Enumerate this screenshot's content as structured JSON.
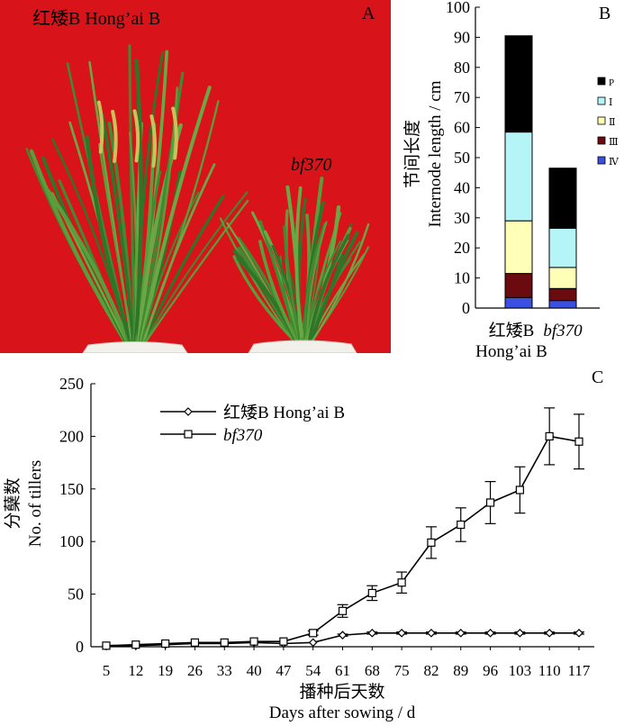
{
  "panel_a": {
    "letter": "A",
    "label_left": "红矮B Hong’ai B",
    "label_right": "bf370",
    "colors": {
      "background": "#d8141a",
      "leaf": "#3f8a32",
      "pot": "#f2f0ea"
    }
  },
  "chart_data": [
    {
      "type": "bar",
      "panel": "B",
      "stacked": true,
      "categories": [
        "红矮B\nHong’ai B",
        "bf370"
      ],
      "category_lines": [
        [
          "红矮B",
          "Hong’ai B"
        ],
        [
          "bf370"
        ]
      ],
      "category_italic": [
        false,
        true
      ],
      "ylabel_cn": "节间长度",
      "ylabel_en": "Internode length / cm",
      "ylim": [
        0,
        100
      ],
      "yticks": [
        0,
        10,
        20,
        30,
        40,
        50,
        60,
        70,
        80,
        90,
        100
      ],
      "legend_position": "right",
      "series": [
        {
          "name": "Ⅳ",
          "color": "#3b4fe0",
          "values": [
            3.5,
            2.5
          ]
        },
        {
          "name": "Ⅲ",
          "color": "#6b0a0f",
          "values": [
            8,
            4
          ]
        },
        {
          "name": "Ⅱ",
          "color": "#ffffb8",
          "values": [
            17.5,
            7
          ]
        },
        {
          "name": "Ⅰ",
          "color": "#b5f5f8",
          "values": [
            29.5,
            13
          ]
        },
        {
          "name": "P",
          "color": "#000000",
          "values": [
            32,
            20
          ]
        }
      ]
    },
    {
      "type": "line",
      "panel": "C",
      "xlabel_cn": "播种后天数",
      "xlabel_en": "Days after sowing / d",
      "ylabel_cn": "分蘖数",
      "ylabel_en": "No. of tillers",
      "x": [
        5,
        12,
        19,
        26,
        33,
        40,
        47,
        54,
        61,
        68,
        75,
        82,
        89,
        96,
        103,
        110,
        117
      ],
      "xticks": [
        "5",
        "12",
        "19",
        "26",
        "33",
        "40",
        "47",
        "54",
        "61",
        "68",
        "75",
        "82",
        "89",
        "96",
        "103",
        "110",
        "117"
      ],
      "ylim": [
        0,
        250
      ],
      "yticks": [
        0,
        50,
        100,
        150,
        200,
        250
      ],
      "legend_position": "top-left",
      "series": [
        {
          "name": "红矮B Hong’ai B",
          "name_italic": false,
          "marker": "diamond",
          "values": [
            1,
            1,
            2,
            3,
            3,
            4,
            3,
            4,
            11,
            13,
            13,
            13,
            13,
            13,
            13,
            13,
            13
          ],
          "errors": [
            0,
            0,
            0,
            0,
            0,
            0,
            0,
            0,
            1,
            1,
            1,
            1,
            1,
            1,
            1,
            1,
            1
          ]
        },
        {
          "name": "bf370",
          "name_italic": true,
          "marker": "square",
          "values": [
            1,
            2,
            3,
            4,
            4,
            5,
            5,
            13,
            34,
            51,
            61,
            99,
            116,
            137,
            149,
            200,
            195
          ],
          "errors": [
            0,
            0,
            0,
            0,
            0,
            0,
            0,
            2,
            6,
            7,
            10,
            15,
            16,
            20,
            22,
            27,
            26
          ]
        }
      ]
    }
  ]
}
